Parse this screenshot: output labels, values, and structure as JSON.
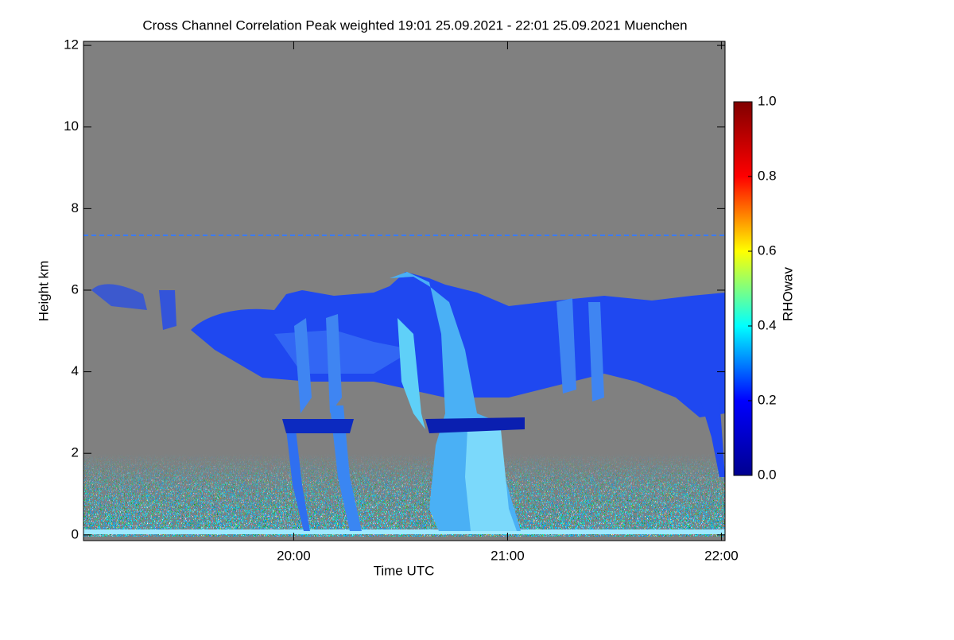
{
  "chart_data": {
    "type": "heatmap",
    "title": "Cross Channel Correlation Peak weighted   19:01 25.09.2021 - 22:01 25.09.2021 Muenchen",
    "xlabel": "Time UTC",
    "ylabel": "Height km",
    "colorbar_label": "RHOwav",
    "xlim": [
      19.017,
      22.017
    ],
    "xticks": [
      {
        "value": 20,
        "label": "20:00"
      },
      {
        "value": 21,
        "label": "21:00"
      },
      {
        "value": 22,
        "label": "22:00"
      }
    ],
    "ylim": [
      -0.14,
      12.1
    ],
    "yticks": [
      0,
      2,
      4,
      6,
      8,
      10,
      12
    ],
    "clim": [
      0,
      1
    ],
    "cticks": [
      {
        "value": 0,
        "label": "0.0"
      },
      {
        "value": 0.2,
        "label": "0.2"
      },
      {
        "value": 0.4,
        "label": "0.4"
      },
      {
        "value": 0.6,
        "label": "0.6"
      },
      {
        "value": 0.8,
        "label": "0.8"
      },
      {
        "value": 1,
        "label": "1.0"
      }
    ],
    "colormap": [
      "#00008f",
      "#0000ff",
      "#00ffff",
      "#ffff00",
      "#ff0000",
      "#800000"
    ]
  }
}
